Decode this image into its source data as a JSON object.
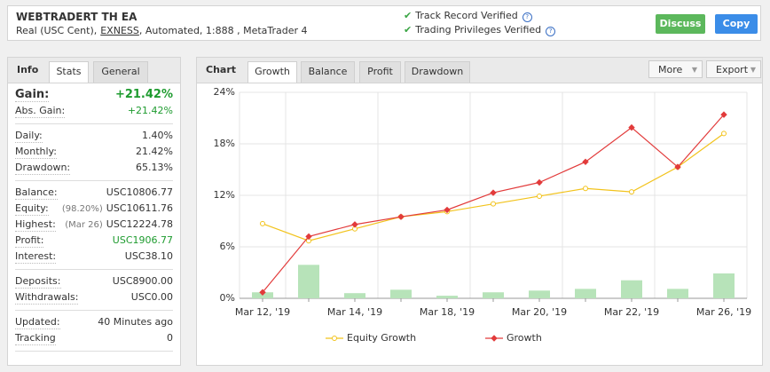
{
  "header": {
    "title": "WEBTRADERT TH EA",
    "account": "Real (USC Cent),",
    "broker": "EXNESS",
    "details": ", Automated, 1:888 , MetaTrader 4",
    "verified": [
      "Track Record Verified",
      "Trading Privileges Verified"
    ],
    "buttons": [
      "Discuss",
      "Copy"
    ]
  },
  "info_panel": {
    "tabs": [
      "Info",
      "Stats",
      "General"
    ],
    "sections": [
      [
        {
          "label": "Gain:",
          "value": "+21.42%",
          "color": "#1e9b2f"
        },
        {
          "label": "Abs. Gain:",
          "value": "+21.42%",
          "color": "#1e9b2f"
        }
      ],
      [
        {
          "label": "Daily:",
          "value": "1.40%"
        },
        {
          "label": "Monthly:",
          "value": "21.42%"
        },
        {
          "label": "Drawdown:",
          "value": "65.13%"
        }
      ],
      [
        {
          "label": "Balance:",
          "value": "USC10806.77"
        },
        {
          "label": "Equity:",
          "note": "(98.20%)",
          "value": "USC10611.76"
        },
        {
          "label": "Highest:",
          "note": "(Mar 26)",
          "value": "USC12224.78"
        },
        {
          "label": "Profit:",
          "value": "USC1906.77",
          "color": "#1e9b2f"
        },
        {
          "label": "Interest:",
          "value": "USC38.10"
        }
      ],
      [
        {
          "label": "Deposits:",
          "value": "USC8900.00"
        },
        {
          "label": "Withdrawals:",
          "value": "USC0.00"
        }
      ],
      [
        {
          "label": "Updated:",
          "value": "40 Minutes ago"
        },
        {
          "label": "Tracking",
          "value": "0"
        }
      ]
    ]
  },
  "chart_panel": {
    "title": "Chart",
    "tabs": [
      "Growth",
      "Balance",
      "Profit",
      "Drawdown"
    ],
    "menus": [
      "More",
      "Export"
    ]
  },
  "chart_data": {
    "type": "line",
    "categories": [
      "Mar 12, '19",
      null,
      "Mar 14, '19",
      null,
      "Mar 18, '19",
      null,
      "Mar 20, '19",
      null,
      "Mar 22, '19",
      null,
      "Mar 26, '19"
    ],
    "series": [
      {
        "name": "Equity Growth",
        "color": "#f2c31c",
        "marker": "circle",
        "values": [
          8.7,
          6.7,
          8.1,
          9.5,
          10.1,
          11.0,
          11.9,
          12.8,
          12.4,
          15.3,
          19.2
        ]
      },
      {
        "name": "Growth",
        "color": "#e23b3b",
        "marker": "diamond",
        "values": [
          0.7,
          7.2,
          8.6,
          9.5,
          10.3,
          12.3,
          13.5,
          15.9,
          19.9,
          15.3,
          21.4
        ]
      }
    ],
    "bars": {
      "color": "#b7e3b9",
      "values": [
        0.7,
        3.9,
        0.6,
        1.0,
        0.3,
        0.7,
        0.9,
        1.1,
        2.1,
        1.1,
        2.9
      ]
    },
    "ylim": [
      0,
      24
    ],
    "yticks": [
      {
        "value": 0,
        "label": "0%"
      },
      {
        "value": 6,
        "label": "6%"
      },
      {
        "value": 12,
        "label": "12%"
      },
      {
        "value": 18,
        "label": "18%"
      },
      {
        "value": 24,
        "label": "24%"
      }
    ],
    "grid": true
  }
}
